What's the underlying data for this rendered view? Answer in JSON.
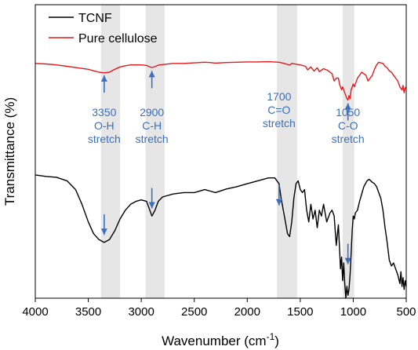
{
  "chart_data": {
    "type": "line",
    "title": "",
    "xlabel": "Wavenumber (cm⁻¹)",
    "xlabel_main": "Wavenumber (cm",
    "xlabel_sup": "-1",
    "xlabel_close": ")",
    "ylabel": "Transmittance (%)",
    "xlim": [
      4000,
      500
    ],
    "x_reversed": true,
    "x_ticks": [
      4000,
      3500,
      3000,
      2500,
      2000,
      1500,
      1000,
      500
    ],
    "y_ticks_shown": false,
    "grid": false,
    "legend_placement": "top-left",
    "colors": {
      "annotation": "#3a70c0",
      "band": "#e6e6e6"
    },
    "highlight_bands": [
      [
        3380,
        3200
      ],
      [
        2960,
        2780
      ],
      [
        1720,
        1530
      ],
      [
        1100,
        990
      ]
    ],
    "series": [
      {
        "name": "TCNF",
        "color": "#000000",
        "points": [
          [
            4000,
            0.58
          ],
          [
            3900,
            0.585
          ],
          [
            3800,
            0.588
          ],
          [
            3700,
            0.6
          ],
          [
            3620,
            0.63
          ],
          [
            3560,
            0.68
          ],
          [
            3500,
            0.74
          ],
          [
            3450,
            0.78
          ],
          [
            3400,
            0.8
          ],
          [
            3350,
            0.81
          ],
          [
            3300,
            0.8
          ],
          [
            3250,
            0.77
          ],
          [
            3200,
            0.73
          ],
          [
            3150,
            0.7
          ],
          [
            3100,
            0.68
          ],
          [
            3050,
            0.67
          ],
          [
            3000,
            0.665
          ],
          [
            2950,
            0.67
          ],
          [
            2920,
            0.7
          ],
          [
            2900,
            0.72
          ],
          [
            2870,
            0.7
          ],
          [
            2840,
            0.67
          ],
          [
            2800,
            0.655
          ],
          [
            2700,
            0.645
          ],
          [
            2600,
            0.64
          ],
          [
            2500,
            0.64
          ],
          [
            2400,
            0.63
          ],
          [
            2350,
            0.635
          ],
          [
            2300,
            0.64
          ],
          [
            2200,
            0.628
          ],
          [
            2100,
            0.62
          ],
          [
            2000,
            0.61
          ],
          [
            1900,
            0.6
          ],
          [
            1800,
            0.59
          ],
          [
            1740,
            0.59
          ],
          [
            1700,
            0.61
          ],
          [
            1680,
            0.66
          ],
          [
            1650,
            0.72
          ],
          [
            1620,
            0.78
          ],
          [
            1600,
            0.79
          ],
          [
            1580,
            0.74
          ],
          [
            1560,
            0.66
          ],
          [
            1540,
            0.61
          ],
          [
            1520,
            0.6
          ],
          [
            1500,
            0.63
          ],
          [
            1480,
            0.64
          ],
          [
            1460,
            0.63
          ],
          [
            1440,
            0.7
          ],
          [
            1420,
            0.74
          ],
          [
            1400,
            0.68
          ],
          [
            1380,
            0.73
          ],
          [
            1360,
            0.7
          ],
          [
            1340,
            0.76
          ],
          [
            1320,
            0.7
          ],
          [
            1300,
            0.72
          ],
          [
            1280,
            0.68
          ],
          [
            1250,
            0.74
          ],
          [
            1220,
            0.71
          ],
          [
            1200,
            0.7
          ],
          [
            1180,
            0.72
          ],
          [
            1160,
            0.82
          ],
          [
            1140,
            0.75
          ],
          [
            1120,
            0.9
          ],
          [
            1110,
            0.86
          ],
          [
            1100,
            0.94
          ],
          [
            1090,
            0.88
          ],
          [
            1080,
            0.95
          ],
          [
            1070,
            1.0
          ],
          [
            1060,
            0.96
          ],
          [
            1050,
            0.99
          ],
          [
            1040,
            0.97
          ],
          [
            1030,
            0.92
          ],
          [
            1020,
            0.85
          ],
          [
            1010,
            0.77
          ],
          [
            1000,
            0.72
          ],
          [
            990,
            0.73
          ],
          [
            980,
            0.71
          ],
          [
            960,
            0.7
          ],
          [
            940,
            0.67
          ],
          [
            900,
            0.62
          ],
          [
            870,
            0.6
          ],
          [
            850,
            0.595
          ],
          [
            820,
            0.605
          ],
          [
            800,
            0.61
          ],
          [
            780,
            0.62
          ],
          [
            760,
            0.64
          ],
          [
            740,
            0.66
          ],
          [
            720,
            0.7
          ],
          [
            700,
            0.76
          ],
          [
            680,
            0.81
          ],
          [
            660,
            0.87
          ],
          [
            640,
            0.89
          ],
          [
            620,
            0.88
          ],
          [
            600,
            0.9
          ],
          [
            580,
            0.92
          ],
          [
            560,
            0.95
          ],
          [
            550,
            0.91
          ],
          [
            540,
            0.96
          ],
          [
            530,
            0.93
          ],
          [
            520,
            0.97
          ],
          [
            510,
            0.94
          ],
          [
            500,
            0.96
          ]
        ]
      },
      {
        "name": "Pure cellulose",
        "color": "#e41a1c",
        "points": [
          [
            4000,
            0.2
          ],
          [
            3900,
            0.202
          ],
          [
            3800,
            0.205
          ],
          [
            3700,
            0.21
          ],
          [
            3600,
            0.215
          ],
          [
            3500,
            0.22
          ],
          [
            3450,
            0.225
          ],
          [
            3400,
            0.23
          ],
          [
            3350,
            0.232
          ],
          [
            3300,
            0.23
          ],
          [
            3250,
            0.22
          ],
          [
            3200,
            0.212
          ],
          [
            3150,
            0.208
          ],
          [
            3100,
            0.205
          ],
          [
            3000,
            0.205
          ],
          [
            2950,
            0.207
          ],
          [
            2920,
            0.212
          ],
          [
            2900,
            0.214
          ],
          [
            2870,
            0.211
          ],
          [
            2840,
            0.206
          ],
          [
            2800,
            0.204
          ],
          [
            2700,
            0.2
          ],
          [
            2600,
            0.2
          ],
          [
            2500,
            0.198
          ],
          [
            2400,
            0.196
          ],
          [
            2350,
            0.197
          ],
          [
            2300,
            0.199
          ],
          [
            2200,
            0.197
          ],
          [
            2100,
            0.196
          ],
          [
            2000,
            0.195
          ],
          [
            1900,
            0.195
          ],
          [
            1800,
            0.194
          ],
          [
            1700,
            0.196
          ],
          [
            1650,
            0.2
          ],
          [
            1600,
            0.206
          ],
          [
            1580,
            0.2
          ],
          [
            1500,
            0.205
          ],
          [
            1450,
            0.21
          ],
          [
            1430,
            0.222
          ],
          [
            1400,
            0.212
          ],
          [
            1370,
            0.226
          ],
          [
            1340,
            0.215
          ],
          [
            1320,
            0.228
          ],
          [
            1280,
            0.218
          ],
          [
            1240,
            0.224
          ],
          [
            1200,
            0.235
          ],
          [
            1180,
            0.26
          ],
          [
            1160,
            0.25
          ],
          [
            1140,
            0.25
          ],
          [
            1130,
            0.27
          ],
          [
            1110,
            0.29
          ],
          [
            1100,
            0.28
          ],
          [
            1080,
            0.3
          ],
          [
            1060,
            0.32
          ],
          [
            1050,
            0.325
          ],
          [
            1040,
            0.31
          ],
          [
            1030,
            0.32
          ],
          [
            1020,
            0.29
          ],
          [
            1010,
            0.28
          ],
          [
            1000,
            0.27
          ],
          [
            990,
            0.28
          ],
          [
            980,
            0.27
          ],
          [
            960,
            0.25
          ],
          [
            940,
            0.24
          ],
          [
            920,
            0.23
          ],
          [
            900,
            0.235
          ],
          [
            880,
            0.24
          ],
          [
            860,
            0.26
          ],
          [
            840,
            0.25
          ],
          [
            820,
            0.24
          ],
          [
            800,
            0.22
          ],
          [
            780,
            0.205
          ],
          [
            760,
            0.196
          ],
          [
            740,
            0.198
          ],
          [
            720,
            0.2
          ],
          [
            700,
            0.21
          ],
          [
            680,
            0.215
          ],
          [
            660,
            0.225
          ],
          [
            640,
            0.23
          ],
          [
            620,
            0.24
          ],
          [
            600,
            0.25
          ],
          [
            580,
            0.26
          ],
          [
            560,
            0.28
          ],
          [
            540,
            0.29
          ],
          [
            530,
            0.275
          ],
          [
            520,
            0.3
          ],
          [
            510,
            0.285
          ],
          [
            500,
            0.28
          ]
        ]
      }
    ],
    "annotations": [
      {
        "lines": [
          "3350",
          "O-H",
          "stretch"
        ],
        "x": 3350,
        "arrow_up_top": 0.23,
        "arrow_down_bottom": 0.8
      },
      {
        "lines": [
          "2900",
          "C-H",
          "stretch"
        ],
        "x": 2900,
        "arrow_up_top": 0.215,
        "arrow_down_bottom": 0.71
      },
      {
        "lines": [
          "1700",
          "C=O",
          "stretch"
        ],
        "x": 1700,
        "arrow_down_bottom": 0.7
      },
      {
        "lines": [
          "1050",
          "C-O",
          "stretch"
        ],
        "x": 1050,
        "arrow_up_top": 0.325,
        "arrow_down_bottom": 0.9
      }
    ]
  }
}
